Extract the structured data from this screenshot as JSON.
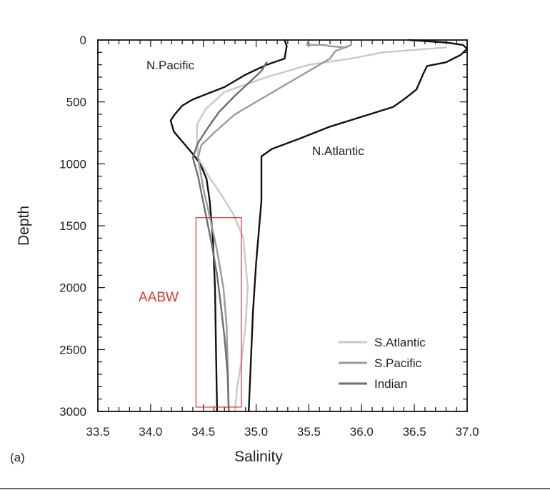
{
  "chart_data": {
    "type": "line",
    "xlabel": "Salinity",
    "ylabel": "Depth",
    "xlim": [
      33.5,
      37.0
    ],
    "ylim": [
      0,
      3000
    ],
    "y_inverted": true,
    "x_ticks": [
      "33.5",
      "34.0",
      "34.5",
      "35.0",
      "35.5",
      "36.0",
      "36.5",
      "37.0"
    ],
    "y_ticks": [
      "0",
      "500",
      "1000",
      "1500",
      "2000",
      "2500",
      "3000"
    ],
    "panel_label": "(a)",
    "annotations": [
      {
        "text": "N.Pacific",
        "x": 34.45,
        "y": 200
      },
      {
        "text": "N.Atlantic",
        "x": 35.85,
        "y": 900
      }
    ],
    "highlight_box": {
      "label": "AABW",
      "color": "#d9342b",
      "x_range": [
        34.43,
        34.86
      ],
      "y_range": [
        1435,
        2965
      ]
    },
    "legend_position": "bottom-right",
    "series": [
      {
        "name": "N.Pacific",
        "color": "#111111",
        "x": [
          35.27,
          35.29,
          35.28,
          35.27,
          35.1,
          34.9,
          34.7,
          34.55,
          34.4,
          34.3,
          34.23,
          34.19,
          34.22,
          34.3,
          34.4,
          34.47,
          34.53,
          34.56,
          34.59,
          34.61,
          34.62,
          34.63
        ],
        "y": [
          0,
          50,
          100,
          150,
          200,
          280,
          380,
          430,
          480,
          530,
          600,
          650,
          740,
          820,
          920,
          1000,
          1120,
          1300,
          1600,
          2000,
          2500,
          3000
        ]
      },
      {
        "name": "N.Atlantic",
        "color": "#111111",
        "x": [
          36.45,
          36.8,
          36.96,
          37.0,
          36.94,
          36.8,
          36.62,
          36.58,
          36.52,
          36.4,
          36.3,
          36.0,
          35.7,
          35.4,
          35.15,
          35.05,
          35.05,
          35.05,
          35.03,
          35.0,
          34.97,
          34.95,
          34.93
        ],
        "y": [
          0,
          20,
          40,
          70,
          120,
          180,
          210,
          280,
          400,
          480,
          540,
          620,
          700,
          800,
          880,
          940,
          1050,
          1300,
          1500,
          1800,
          2200,
          2600,
          3000
        ]
      },
      {
        "name": "S.Atlantic",
        "color": "#c9c9c9",
        "x": [
          36.8,
          36.2,
          35.9,
          35.5,
          35.1,
          34.7,
          34.52,
          34.44,
          34.44,
          34.45,
          34.55,
          34.67,
          34.78,
          34.88,
          34.92,
          34.9,
          34.86,
          34.82,
          34.8
        ],
        "y": [
          60,
          100,
          150,
          200,
          300,
          420,
          560,
          680,
          800,
          950,
          1100,
          1250,
          1400,
          1600,
          2000,
          2300,
          2600,
          2800,
          3000
        ]
      },
      {
        "name": "S.Pacific",
        "color": "#9a9a9a",
        "x": [
          35.5,
          35.48,
          35.65,
          35.7,
          35.85,
          35.9,
          35.75,
          35.7,
          35.6,
          35.4,
          35.1,
          34.8,
          34.6,
          34.48,
          34.45,
          34.5,
          34.58,
          34.63,
          34.69,
          34.72,
          34.73,
          34.74
        ],
        "y": [
          0,
          40,
          40,
          50,
          60,
          40,
          90,
          150,
          200,
          300,
          450,
          600,
          750,
          850,
          950,
          1200,
          1500,
          1700,
          2000,
          2300,
          2600,
          3000
        ]
      },
      {
        "name": "Indian",
        "color": "#6e6e6e",
        "x": [
          35.1,
          35.05,
          34.95,
          34.8,
          34.65,
          34.55,
          34.45,
          34.4,
          34.45,
          34.52,
          34.58,
          34.63,
          34.66,
          34.7,
          34.73,
          34.74
        ],
        "y": [
          180,
          250,
          330,
          450,
          580,
          700,
          830,
          950,
          1100,
          1400,
          1650,
          1900,
          2100,
          2400,
          2700,
          3000
        ]
      }
    ]
  }
}
